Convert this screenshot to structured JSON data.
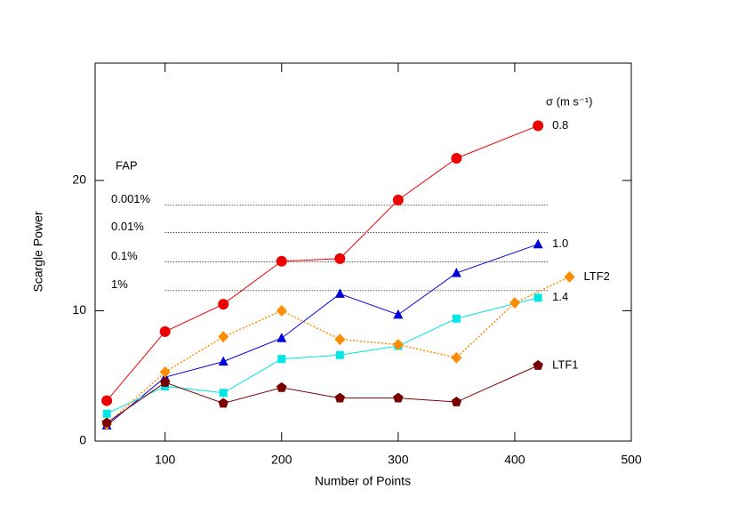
{
  "chart_data": {
    "type": "line",
    "xlabel": "Number of Points",
    "ylabel": "Scargle Power",
    "xlim": [
      40,
      500
    ],
    "ylim": [
      0,
      29
    ],
    "xticks": [
      100,
      200,
      300,
      400,
      500
    ],
    "yticks": [
      0,
      10,
      20
    ],
    "legend_title": "σ (m s⁻¹)",
    "fap_title": "FAP",
    "fap_levels": [
      {
        "label": "0.001%",
        "value": 18.1
      },
      {
        "label": "0.01%",
        "value": 16.0
      },
      {
        "label": "0.1%",
        "value": 13.75
      },
      {
        "label": "1%",
        "value": 11.55
      }
    ],
    "fap_xrange": [
      100,
      429
    ],
    "series": [
      {
        "name": "0.8",
        "color": "#ee0000",
        "marker": "circle",
        "dash": "solid",
        "x": [
          50,
          100,
          150,
          200,
          250,
          300,
          350,
          420
        ],
        "values": [
          3.1,
          8.4,
          10.5,
          13.8,
          14.0,
          18.5,
          21.7,
          24.2
        ]
      },
      {
        "name": "1.0",
        "color": "#0000dd",
        "marker": "triangle",
        "dash": "solid",
        "x": [
          50,
          100,
          150,
          200,
          250,
          300,
          350,
          420
        ],
        "values": [
          1.2,
          4.9,
          6.1,
          7.9,
          11.3,
          9.7,
          12.9,
          15.1
        ]
      },
      {
        "name": "1.4",
        "color": "#00e5e5",
        "marker": "square",
        "dash": "solid",
        "x": [
          50,
          100,
          150,
          200,
          250,
          300,
          350,
          420
        ],
        "values": [
          2.1,
          4.2,
          3.7,
          6.3,
          6.6,
          7.3,
          9.4,
          11.0
        ]
      },
      {
        "name": "LTF2",
        "color": "#ff8c00",
        "marker": "diamond",
        "dash": "dotted",
        "x": [
          50,
          100,
          150,
          200,
          250,
          300,
          350,
          400,
          447
        ],
        "values": [
          1.3,
          5.3,
          8.0,
          10.0,
          7.8,
          7.4,
          6.4,
          10.6,
          12.6
        ]
      },
      {
        "name": "LTF1",
        "color": "#7a0000",
        "marker": "pentagon",
        "dash": "solid",
        "x": [
          50,
          100,
          150,
          200,
          250,
          300,
          350,
          420
        ],
        "values": [
          1.4,
          4.5,
          2.9,
          4.1,
          3.3,
          3.3,
          3.0,
          5.8
        ]
      }
    ]
  }
}
